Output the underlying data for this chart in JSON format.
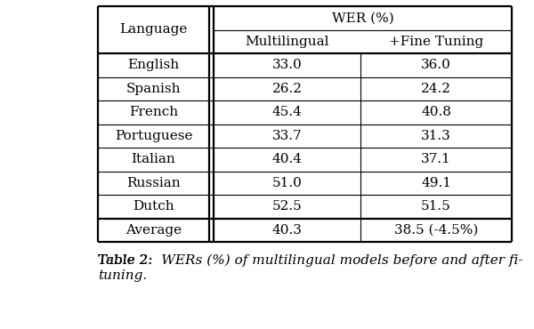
{
  "languages": [
    "English",
    "Spanish",
    "French",
    "Portuguese",
    "Italian",
    "Russian",
    "Dutch"
  ],
  "multilingual": [
    "33.0",
    "26.2",
    "45.4",
    "33.7",
    "40.4",
    "51.0",
    "52.5"
  ],
  "fine_tuning": [
    "36.0",
    "24.2",
    "40.8",
    "31.3",
    "37.1",
    "49.1",
    "51.5"
  ],
  "avg_multilingual": "40.3",
  "avg_fine_tuning": "38.5 (-4.5%)",
  "header1": "Language",
  "header2": "WER (%)",
  "col2": "Multilingual",
  "col3": "+Fine Tuning",
  "avg_label": "Average",
  "caption_label": "Table 2:",
  "caption_text": "  WERs (%) of multilingual models before and after fi-\ntuning.",
  "bg_color": "#ffffff",
  "text_color": "#000000",
  "font_size": 11.0,
  "caption_font_size": 11.0,
  "lw_thick": 1.6,
  "lw_thin": 0.8
}
